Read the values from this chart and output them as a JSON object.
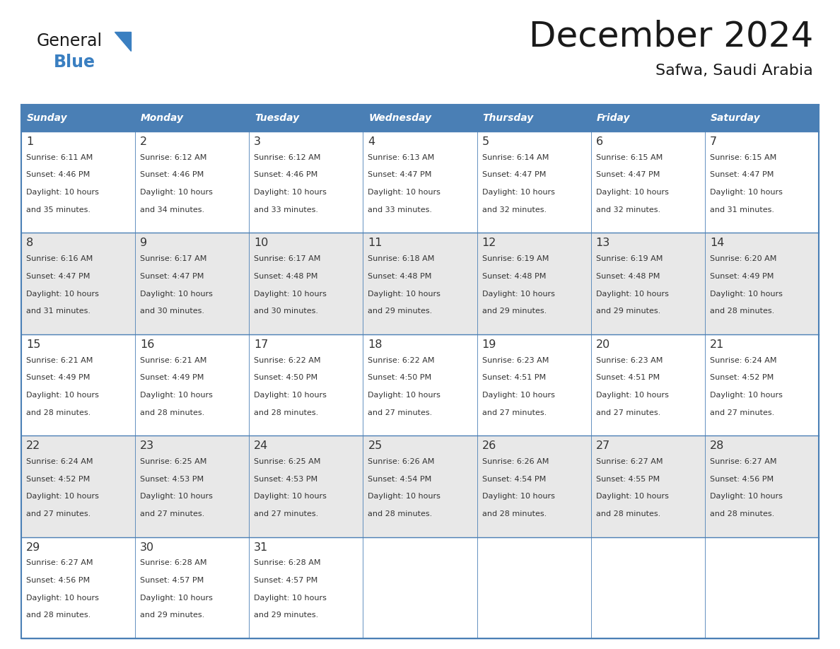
{
  "title": "December 2024",
  "subtitle": "Safwa, Saudi Arabia",
  "header_color": "#4a7fb5",
  "header_text_color": "#ffffff",
  "cell_bg_color": "#ffffff",
  "alt_cell_bg_color": "#e8e8e8",
  "border_color": "#4a7fb5",
  "text_color": "#333333",
  "day_names": [
    "Sunday",
    "Monday",
    "Tuesday",
    "Wednesday",
    "Thursday",
    "Friday",
    "Saturday"
  ],
  "title_color": "#1a1a1a",
  "subtitle_color": "#1a1a1a",
  "logo_general_color": "#1a1a1a",
  "logo_blue_color": "#3a7fc1",
  "fig_width": 11.88,
  "fig_height": 9.18,
  "dpi": 100,
  "days": [
    {
      "date": 1,
      "col": 0,
      "row": 0,
      "sunrise": "6:11 AM",
      "sunset": "4:46 PM",
      "daylight": "10 hours and 35 minutes."
    },
    {
      "date": 2,
      "col": 1,
      "row": 0,
      "sunrise": "6:12 AM",
      "sunset": "4:46 PM",
      "daylight": "10 hours and 34 minutes."
    },
    {
      "date": 3,
      "col": 2,
      "row": 0,
      "sunrise": "6:12 AM",
      "sunset": "4:46 PM",
      "daylight": "10 hours and 33 minutes."
    },
    {
      "date": 4,
      "col": 3,
      "row": 0,
      "sunrise": "6:13 AM",
      "sunset": "4:47 PM",
      "daylight": "10 hours and 33 minutes."
    },
    {
      "date": 5,
      "col": 4,
      "row": 0,
      "sunrise": "6:14 AM",
      "sunset": "4:47 PM",
      "daylight": "10 hours and 32 minutes."
    },
    {
      "date": 6,
      "col": 5,
      "row": 0,
      "sunrise": "6:15 AM",
      "sunset": "4:47 PM",
      "daylight": "10 hours and 32 minutes."
    },
    {
      "date": 7,
      "col": 6,
      "row": 0,
      "sunrise": "6:15 AM",
      "sunset": "4:47 PM",
      "daylight": "10 hours and 31 minutes."
    },
    {
      "date": 8,
      "col": 0,
      "row": 1,
      "sunrise": "6:16 AM",
      "sunset": "4:47 PM",
      "daylight": "10 hours and 31 minutes."
    },
    {
      "date": 9,
      "col": 1,
      "row": 1,
      "sunrise": "6:17 AM",
      "sunset": "4:47 PM",
      "daylight": "10 hours and 30 minutes."
    },
    {
      "date": 10,
      "col": 2,
      "row": 1,
      "sunrise": "6:17 AM",
      "sunset": "4:48 PM",
      "daylight": "10 hours and 30 minutes."
    },
    {
      "date": 11,
      "col": 3,
      "row": 1,
      "sunrise": "6:18 AM",
      "sunset": "4:48 PM",
      "daylight": "10 hours and 29 minutes."
    },
    {
      "date": 12,
      "col": 4,
      "row": 1,
      "sunrise": "6:19 AM",
      "sunset": "4:48 PM",
      "daylight": "10 hours and 29 minutes."
    },
    {
      "date": 13,
      "col": 5,
      "row": 1,
      "sunrise": "6:19 AM",
      "sunset": "4:48 PM",
      "daylight": "10 hours and 29 minutes."
    },
    {
      "date": 14,
      "col": 6,
      "row": 1,
      "sunrise": "6:20 AM",
      "sunset": "4:49 PM",
      "daylight": "10 hours and 28 minutes."
    },
    {
      "date": 15,
      "col": 0,
      "row": 2,
      "sunrise": "6:21 AM",
      "sunset": "4:49 PM",
      "daylight": "10 hours and 28 minutes."
    },
    {
      "date": 16,
      "col": 1,
      "row": 2,
      "sunrise": "6:21 AM",
      "sunset": "4:49 PM",
      "daylight": "10 hours and 28 minutes."
    },
    {
      "date": 17,
      "col": 2,
      "row": 2,
      "sunrise": "6:22 AM",
      "sunset": "4:50 PM",
      "daylight": "10 hours and 28 minutes."
    },
    {
      "date": 18,
      "col": 3,
      "row": 2,
      "sunrise": "6:22 AM",
      "sunset": "4:50 PM",
      "daylight": "10 hours and 27 minutes."
    },
    {
      "date": 19,
      "col": 4,
      "row": 2,
      "sunrise": "6:23 AM",
      "sunset": "4:51 PM",
      "daylight": "10 hours and 27 minutes."
    },
    {
      "date": 20,
      "col": 5,
      "row": 2,
      "sunrise": "6:23 AM",
      "sunset": "4:51 PM",
      "daylight": "10 hours and 27 minutes."
    },
    {
      "date": 21,
      "col": 6,
      "row": 2,
      "sunrise": "6:24 AM",
      "sunset": "4:52 PM",
      "daylight": "10 hours and 27 minutes."
    },
    {
      "date": 22,
      "col": 0,
      "row": 3,
      "sunrise": "6:24 AM",
      "sunset": "4:52 PM",
      "daylight": "10 hours and 27 minutes."
    },
    {
      "date": 23,
      "col": 1,
      "row": 3,
      "sunrise": "6:25 AM",
      "sunset": "4:53 PM",
      "daylight": "10 hours and 27 minutes."
    },
    {
      "date": 24,
      "col": 2,
      "row": 3,
      "sunrise": "6:25 AM",
      "sunset": "4:53 PM",
      "daylight": "10 hours and 27 minutes."
    },
    {
      "date": 25,
      "col": 3,
      "row": 3,
      "sunrise": "6:26 AM",
      "sunset": "4:54 PM",
      "daylight": "10 hours and 28 minutes."
    },
    {
      "date": 26,
      "col": 4,
      "row": 3,
      "sunrise": "6:26 AM",
      "sunset": "4:54 PM",
      "daylight": "10 hours and 28 minutes."
    },
    {
      "date": 27,
      "col": 5,
      "row": 3,
      "sunrise": "6:27 AM",
      "sunset": "4:55 PM",
      "daylight": "10 hours and 28 minutes."
    },
    {
      "date": 28,
      "col": 6,
      "row": 3,
      "sunrise": "6:27 AM",
      "sunset": "4:56 PM",
      "daylight": "10 hours and 28 minutes."
    },
    {
      "date": 29,
      "col": 0,
      "row": 4,
      "sunrise": "6:27 AM",
      "sunset": "4:56 PM",
      "daylight": "10 hours and 28 minutes."
    },
    {
      "date": 30,
      "col": 1,
      "row": 4,
      "sunrise": "6:28 AM",
      "sunset": "4:57 PM",
      "daylight": "10 hours and 29 minutes."
    },
    {
      "date": 31,
      "col": 2,
      "row": 4,
      "sunrise": "6:28 AM",
      "sunset": "4:57 PM",
      "daylight": "10 hours and 29 minutes."
    }
  ]
}
